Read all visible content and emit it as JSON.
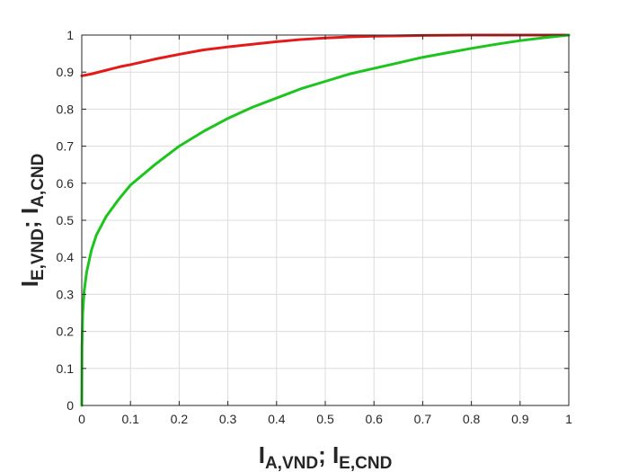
{
  "chart_data": {
    "type": "line",
    "title": "",
    "xlabel": {
      "main": "I",
      "sub1": "A,VND",
      "sep": "; I",
      "sub2": "E,CND"
    },
    "ylabel": {
      "main": "I",
      "sub1": "E,VND",
      "sep": "; I",
      "sub2": "A,CND"
    },
    "xlim": [
      0,
      1
    ],
    "ylim": [
      0,
      1
    ],
    "grid": true,
    "xticks": [
      0,
      0.1,
      0.2,
      0.3,
      0.4,
      0.5,
      0.6,
      0.7,
      0.8,
      0.9,
      1
    ],
    "yticks": [
      0,
      0.1,
      0.2,
      0.3,
      0.4,
      0.5,
      0.6,
      0.7,
      0.8,
      0.9,
      1
    ],
    "xtick_labels": [
      "0",
      "0.1",
      "0.2",
      "0.3",
      "0.4",
      "0.5",
      "0.6",
      "0.7",
      "0.8",
      "0.9",
      "1"
    ],
    "ytick_labels": [
      "0",
      "0.1",
      "0.2",
      "0.3",
      "0.4",
      "0.5",
      "0.6",
      "0.7",
      "0.8",
      "0.9",
      "1"
    ],
    "series": [
      {
        "color": "#e41a1a",
        "x": [
          0,
          0.02,
          0.05,
          0.08,
          0.1,
          0.15,
          0.2,
          0.25,
          0.3,
          0.35,
          0.4,
          0.45,
          0.5,
          0.55,
          0.6,
          0.65,
          0.7,
          0.8,
          0.9,
          1.0
        ],
        "y": [
          0.89,
          0.895,
          0.905,
          0.915,
          0.92,
          0.935,
          0.948,
          0.96,
          0.968,
          0.975,
          0.982,
          0.988,
          0.992,
          0.995,
          0.997,
          0.998,
          0.999,
          1.0,
          1.0,
          1.0
        ]
      },
      {
        "color": "#1ec41e",
        "x": [
          0,
          0.0005,
          0.002,
          0.005,
          0.01,
          0.02,
          0.03,
          0.05,
          0.075,
          0.1,
          0.15,
          0.2,
          0.25,
          0.3,
          0.35,
          0.4,
          0.45,
          0.5,
          0.55,
          0.6,
          0.65,
          0.7,
          0.75,
          0.8,
          0.85,
          0.9,
          0.95,
          1.0
        ],
        "y": [
          0,
          0.16,
          0.25,
          0.31,
          0.36,
          0.42,
          0.46,
          0.51,
          0.555,
          0.595,
          0.65,
          0.7,
          0.74,
          0.775,
          0.805,
          0.83,
          0.855,
          0.875,
          0.895,
          0.91,
          0.925,
          0.94,
          0.952,
          0.964,
          0.975,
          0.985,
          0.993,
          1.0
        ]
      }
    ]
  }
}
